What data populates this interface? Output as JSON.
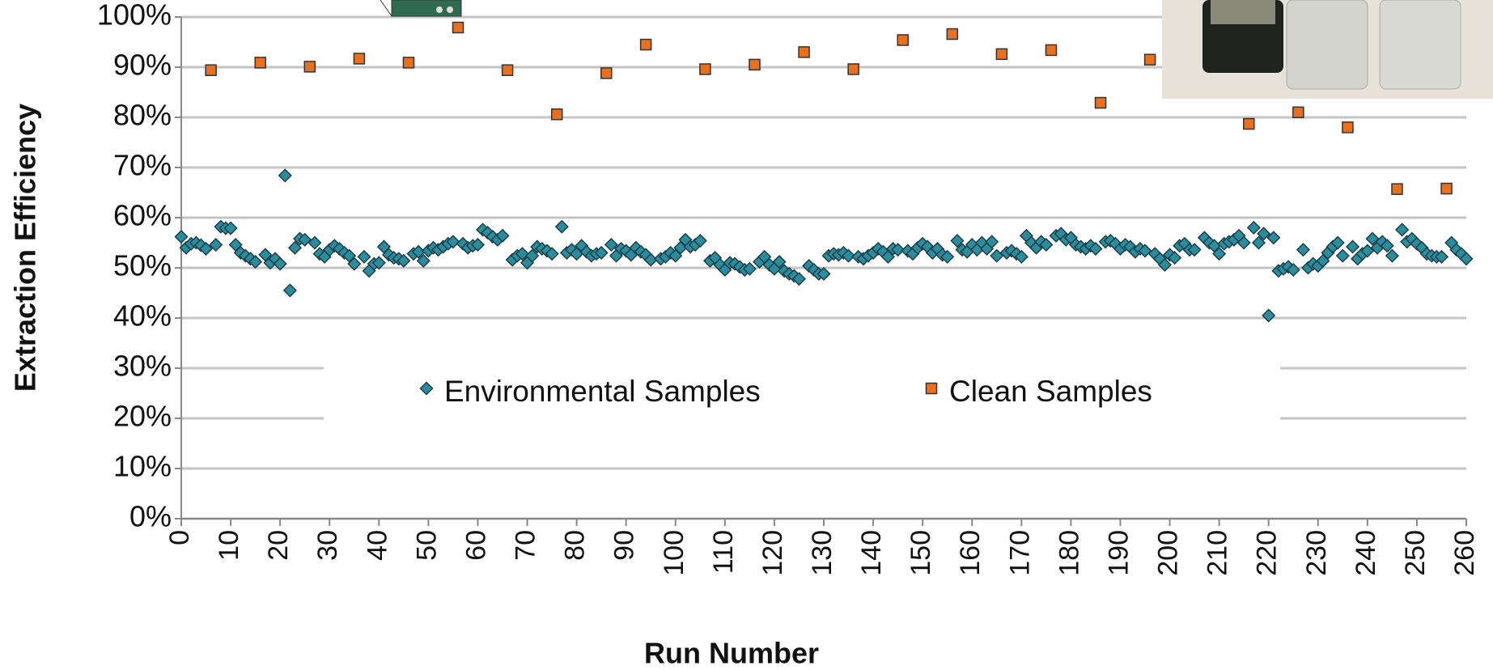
{
  "chart_data": {
    "type": "scatter",
    "x_label": "Run Number",
    "y_label": "Extraction Efficiency",
    "xlim": [
      0,
      260
    ],
    "xticks": [
      0,
      10,
      20,
      30,
      40,
      50,
      60,
      70,
      80,
      90,
      100,
      110,
      120,
      130,
      140,
      150,
      160,
      170,
      180,
      190,
      200,
      210,
      220,
      230,
      240,
      250,
      260
    ],
    "ylim": [
      0,
      100
    ],
    "yticks": [
      {
        "value": 0,
        "label": "0%"
      },
      {
        "value": 10,
        "label": "10%"
      },
      {
        "value": 20,
        "label": "20%"
      },
      {
        "value": 30,
        "label": "30%"
      },
      {
        "value": 40,
        "label": "40%"
      },
      {
        "value": 50,
        "label": "50%"
      },
      {
        "value": 60,
        "label": "60%"
      },
      {
        "value": 70,
        "label": "70%"
      },
      {
        "value": 80,
        "label": "80%"
      },
      {
        "value": 90,
        "label": "90%"
      },
      {
        "value": 100,
        "label": "100%"
      }
    ],
    "grid": true,
    "legend": "center",
    "series": [
      {
        "name": "Environmental Samples",
        "color": "#2b8c9e",
        "marker": "diamond",
        "x": [
          0,
          1,
          2,
          3,
          4,
          5,
          7,
          8,
          9,
          10,
          11,
          12,
          13,
          14,
          15,
          17,
          18,
          19,
          20,
          21,
          22,
          23,
          24,
          25,
          27,
          28,
          29,
          30,
          31,
          32,
          33,
          34,
          35,
          37,
          38,
          39,
          40,
          41,
          42,
          43,
          44,
          45,
          47,
          48,
          49,
          50,
          51,
          52,
          53,
          54,
          55,
          57,
          58,
          59,
          60,
          61,
          62,
          63,
          64,
          65,
          67,
          68,
          69,
          70,
          71,
          72,
          73,
          74,
          75,
          77,
          78,
          79,
          80,
          81,
          82,
          83,
          84,
          85,
          87,
          88,
          89,
          90,
          91,
          92,
          93,
          94,
          95,
          97,
          98,
          99,
          100,
          101,
          102,
          103,
          104,
          105,
          107,
          108,
          109,
          110,
          111,
          112,
          113,
          114,
          115,
          117,
          118,
          119,
          120,
          121,
          122,
          123,
          124,
          125,
          127,
          128,
          129,
          130,
          131,
          132,
          133,
          134,
          135,
          137,
          138,
          139,
          140,
          141,
          142,
          143,
          144,
          145,
          147,
          148,
          149,
          150,
          151,
          152,
          153,
          154,
          155,
          157,
          158,
          159,
          160,
          161,
          162,
          163,
          164,
          165,
          167,
          168,
          169,
          170,
          171,
          172,
          173,
          174,
          175,
          177,
          178,
          179,
          180,
          181,
          182,
          183,
          184,
          185,
          187,
          188,
          189,
          190,
          191,
          192,
          193,
          194,
          195,
          197,
          198,
          199,
          200,
          201,
          202,
          203,
          204,
          205,
          207,
          208,
          209,
          210,
          211,
          212,
          213,
          214,
          215,
          217,
          218,
          219,
          220,
          221,
          222,
          223,
          224,
          225,
          227,
          228,
          229,
          230,
          231,
          232,
          233,
          234,
          235,
          237,
          238,
          239,
          240,
          241,
          242,
          243,
          244,
          245,
          247,
          248,
          249,
          250,
          251,
          252,
          253,
          254,
          255,
          257,
          258,
          259,
          260
        ],
        "values": [
          56.2,
          54.0,
          54.8,
          55.0,
          54.5,
          53.8,
          54.6,
          58.2,
          57.9,
          57.9,
          54.6,
          53.0,
          52.4,
          51.8,
          51.2,
          52.6,
          51.0,
          51.8,
          50.8,
          68.4,
          45.5,
          54.0,
          55.8,
          55.6,
          55.0,
          52.8,
          52.2,
          53.6,
          54.4,
          53.8,
          53.0,
          52.4,
          50.8,
          52.2,
          49.4,
          50.8,
          51.0,
          54.2,
          52.6,
          52.0,
          51.8,
          51.4,
          52.8,
          53.2,
          51.4,
          53.4,
          54.0,
          53.6,
          54.2,
          54.8,
          55.2,
          54.8,
          54.0,
          54.4,
          54.6,
          57.6,
          57.0,
          56.2,
          55.6,
          56.4,
          51.6,
          52.4,
          52.8,
          51.0,
          52.4,
          54.2,
          53.8,
          53.4,
          52.8,
          58.2,
          53.0,
          53.6,
          52.8,
          54.4,
          53.2,
          52.4,
          52.8,
          53.0,
          54.6,
          52.4,
          53.8,
          53.4,
          52.6,
          54.0,
          53.2,
          52.6,
          51.6,
          51.8,
          52.2,
          53.0,
          52.4,
          54.0,
          55.6,
          54.2,
          54.6,
          55.4,
          51.4,
          52.0,
          50.6,
          49.6,
          51.0,
          50.8,
          50.2,
          49.6,
          49.8,
          51.2,
          52.2,
          50.6,
          49.8,
          51.2,
          49.4,
          48.8,
          48.4,
          47.8,
          50.4,
          49.6,
          48.8,
          48.8,
          52.4,
          52.8,
          52.6,
          53.0,
          52.4,
          52.2,
          51.8,
          52.4,
          53.0,
          53.8,
          53.2,
          52.2,
          53.8,
          53.6,
          53.4,
          52.8,
          54.0,
          54.8,
          54.2,
          53.0,
          53.8,
          52.6,
          52.2,
          55.4,
          53.6,
          53.2,
          54.6,
          53.6,
          55.0,
          53.8,
          55.2,
          52.4,
          53.0,
          53.4,
          52.8,
          52.2,
          56.4,
          55.0,
          54.0,
          55.2,
          54.6,
          56.4,
          56.8,
          55.6,
          56.0,
          54.6,
          54.2,
          53.8,
          54.4,
          53.8,
          55.2,
          55.4,
          54.8,
          53.8,
          54.6,
          54.2,
          53.2,
          53.8,
          53.4,
          52.8,
          51.8,
          50.6,
          52.6,
          52.0,
          54.4,
          54.8,
          53.6,
          53.6,
          56.0,
          55.0,
          54.4,
          52.8,
          54.8,
          55.2,
          55.6,
          56.4,
          55.0,
          58.0,
          55.0,
          56.8,
          40.5,
          56.0,
          49.4,
          49.8,
          50.2,
          49.6,
          53.6,
          50.0,
          50.8,
          50.4,
          51.4,
          53.0,
          54.2,
          55.0,
          52.4,
          54.2,
          51.8,
          52.8,
          53.4,
          55.8,
          54.0,
          55.2,
          54.4,
          52.4,
          57.6,
          55.2,
          55.8,
          54.8,
          54.0,
          52.8,
          52.4,
          52.2,
          52.2,
          55.0,
          53.6,
          52.8,
          51.8
        ]
      },
      {
        "name": "Clean Samples",
        "color": "#e8701e",
        "marker": "square",
        "x": [
          6,
          16,
          26,
          36,
          46,
          56,
          66,
          76,
          86,
          94,
          106,
          116,
          126,
          136,
          146,
          156,
          166,
          176,
          186,
          196,
          216,
          226,
          236,
          246,
          256
        ],
        "values": [
          89.4,
          90.9,
          90.1,
          91.7,
          90.9,
          97.9,
          89.4,
          80.6,
          88.8,
          94.5,
          89.6,
          90.5,
          93.0,
          89.6,
          95.4,
          96.6,
          92.6,
          93.4,
          82.9,
          91.5,
          78.7,
          81.0,
          78.0,
          65.7,
          65.8
        ]
      }
    ]
  }
}
